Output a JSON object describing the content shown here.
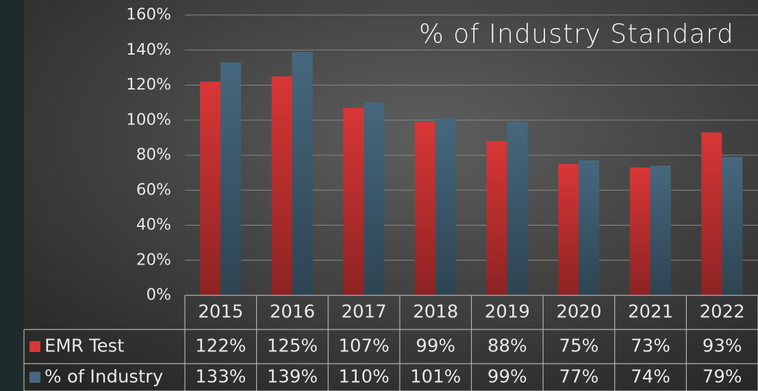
{
  "chart_data": {
    "type": "bar",
    "title": "% of Industry Standard",
    "categories": [
      "2015",
      "2016",
      "2017",
      "2018",
      "2019",
      "2020",
      "2021",
      "2022"
    ],
    "series": [
      {
        "name": "EMR Test",
        "color": "#d93636",
        "values": [
          122,
          125,
          107,
          99,
          88,
          75,
          73,
          93
        ],
        "value_labels": [
          "122%",
          "125%",
          "107%",
          "99%",
          "88%",
          "75%",
          "73%",
          "93%"
        ]
      },
      {
        "name": "% of Industry",
        "color": "#46687e",
        "values": [
          133,
          139,
          110,
          101,
          99,
          77,
          74,
          79
        ],
        "value_labels": [
          "133%",
          "139%",
          "110%",
          "101%",
          "99%",
          "77%",
          "74%",
          "79%"
        ]
      }
    ],
    "ylim": [
      0,
      160
    ],
    "yticks": [
      {
        "value": 0,
        "label": "0%"
      },
      {
        "value": 20,
        "label": "20%"
      },
      {
        "value": 40,
        "label": "40%"
      },
      {
        "value": 60,
        "label": "60%"
      },
      {
        "value": 80,
        "label": "80%"
      },
      {
        "value": 100,
        "label": "100%"
      },
      {
        "value": 120,
        "label": "120%"
      },
      {
        "value": 140,
        "label": "140%"
      },
      {
        "value": 160,
        "label": "160%"
      }
    ],
    "grid": true
  }
}
